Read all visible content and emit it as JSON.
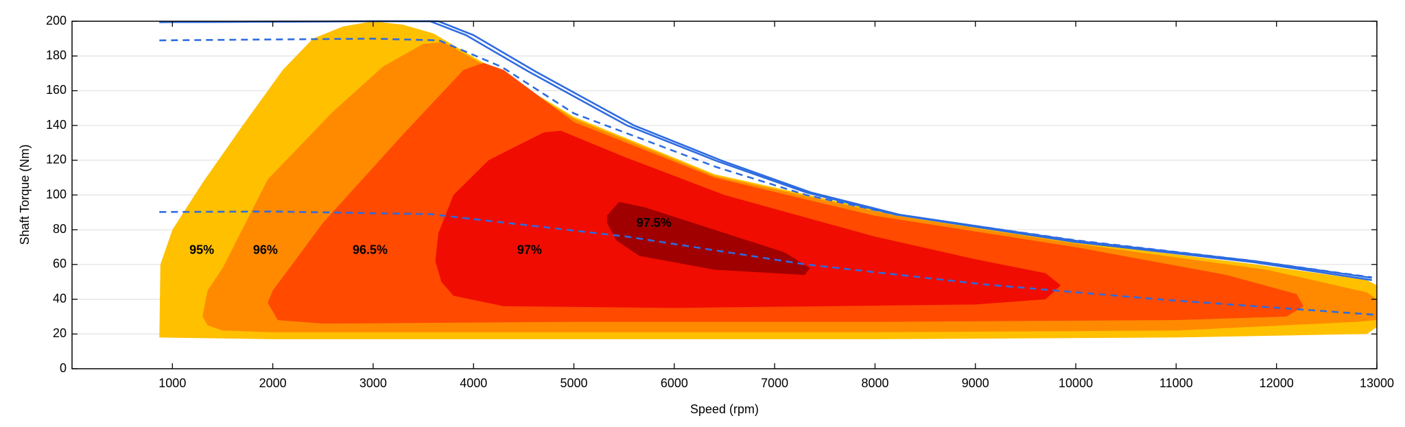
{
  "chart_data": {
    "type": "contour",
    "xlabel": "Speed  (rpm)",
    "ylabel": "Shaft Torque  (Nm)",
    "xlim": [
      0,
      13000
    ],
    "ylim": [
      0,
      200
    ],
    "xticks": [
      1000,
      2000,
      3000,
      4000,
      5000,
      6000,
      7000,
      8000,
      9000,
      10000,
      11000,
      12000,
      13000
    ],
    "yticks": [
      0,
      20,
      40,
      60,
      80,
      100,
      120,
      140,
      160,
      180,
      200
    ],
    "grid": true,
    "regions": [
      {
        "name": "95%",
        "color": "#ffc000",
        "label_at": [
          1293,
          68
        ],
        "x": [
          870,
          880,
          1000,
          1300,
          1700,
          2100,
          2400,
          2700,
          3000,
          3300,
          3600,
          4100,
          5000,
          6400,
          8200,
          10000,
          11800,
          12900,
          13000,
          13000,
          12900,
          11000,
          8000,
          5000,
          2000,
          880
        ],
        "y": [
          18,
          60,
          80,
          107,
          140,
          172,
          190,
          197,
          200,
          198,
          193,
          176,
          145,
          112,
          89,
          73,
          60,
          51,
          48,
          24,
          20,
          18,
          17,
          17,
          17,
          18
        ]
      },
      {
        "name": "96%",
        "color": "#ff8a00",
        "label_at": [
          1927,
          68
        ],
        "x": [
          1300,
          1350,
          1500,
          1950,
          2600,
          3100,
          3500,
          3700,
          4100,
          5000,
          6400,
          8200,
          10000,
          11900,
          12900,
          13000,
          13000,
          12800,
          11000,
          8000,
          5000,
          2000,
          1500,
          1350
        ],
        "y": [
          30,
          45,
          58,
          109,
          148,
          174,
          187,
          188,
          175,
          144,
          111,
          88,
          72,
          57,
          44,
          40,
          28,
          27,
          22,
          21,
          21,
          21,
          22,
          25
        ]
      },
      {
        "name": "96.5%",
        "color": "#ff4a00",
        "label_at": [
          2970,
          68
        ],
        "x": [
          1950,
          2000,
          2500,
          3300,
          3900,
          4100,
          4300,
          5000,
          6400,
          8000,
          10000,
          11500,
          12200,
          12270,
          12100,
          11000,
          8000,
          5000,
          2500,
          2050
        ],
        "y": [
          38,
          45,
          84,
          135,
          172,
          176,
          172,
          142,
          110,
          88,
          70,
          54,
          43,
          36,
          30,
          28,
          27,
          27,
          26,
          28
        ]
      },
      {
        "name": "97%",
        "color": "#f00c00",
        "label_at": [
          4558,
          68
        ],
        "x": [
          3620,
          3680,
          3800,
          4300,
          6000,
          9000,
          9700,
          9850,
          9700,
          9000,
          8000,
          6500,
          5500,
          4870,
          4700,
          4150,
          3800,
          3650
        ],
        "y": [
          62,
          50,
          42,
          36,
          35,
          37,
          40,
          48,
          55,
          63,
          76,
          100,
          122,
          137,
          136,
          120,
          100,
          78
        ]
      },
      {
        "name": "97.5%",
        "color": "#a00000",
        "label_at": [
          5798,
          83.5
        ],
        "x": [
          5330,
          5450,
          5700,
          6400,
          7100,
          7350,
          7300,
          6400,
          5650,
          5420,
          5330
        ],
        "y": [
          88,
          96,
          93,
          80,
          67,
          58,
          54,
          57,
          65,
          74,
          84
        ]
      }
    ],
    "lines": [
      {
        "color": "#2d6be0",
        "dash": false,
        "x": [
          870,
          3000,
          3568,
          3925,
          4549,
          5531,
          6423,
          7315,
          8207,
          9991,
          11775,
          12950
        ],
        "y": [
          199.5,
          200,
          200,
          192,
          171,
          140,
          119.6,
          101.5,
          88.7,
          73,
          61.3,
          51
        ]
      },
      {
        "color": "#2d6be0",
        "dash": false,
        "x": [
          870,
          3000,
          3650,
          4000,
          4620,
          5600,
          6480,
          7360,
          8240,
          10020,
          11800,
          12950
        ],
        "y": [
          199.5,
          200,
          200,
          192,
          171,
          140,
          119.6,
          101.5,
          88.7,
          73.5,
          61.8,
          52.3
        ]
      },
      {
        "color": "#2d6be0",
        "dash": true,
        "x": [
          870,
          3000,
          3657,
          4282,
          5000,
          6423,
          7315,
          8207,
          9991,
          11775,
          12950
        ],
        "y": [
          189,
          190,
          189,
          173.7,
          147,
          116,
          100,
          88.7,
          74,
          62,
          52.6
        ]
      },
      {
        "color": "#2d6be0",
        "dash": true,
        "x": [
          870,
          2000,
          3568,
          5531,
          7315,
          9099,
          10883,
          13000
        ],
        "y": [
          90.2,
          90.5,
          89,
          76,
          60,
          48.5,
          39.7,
          31
        ]
      }
    ]
  }
}
